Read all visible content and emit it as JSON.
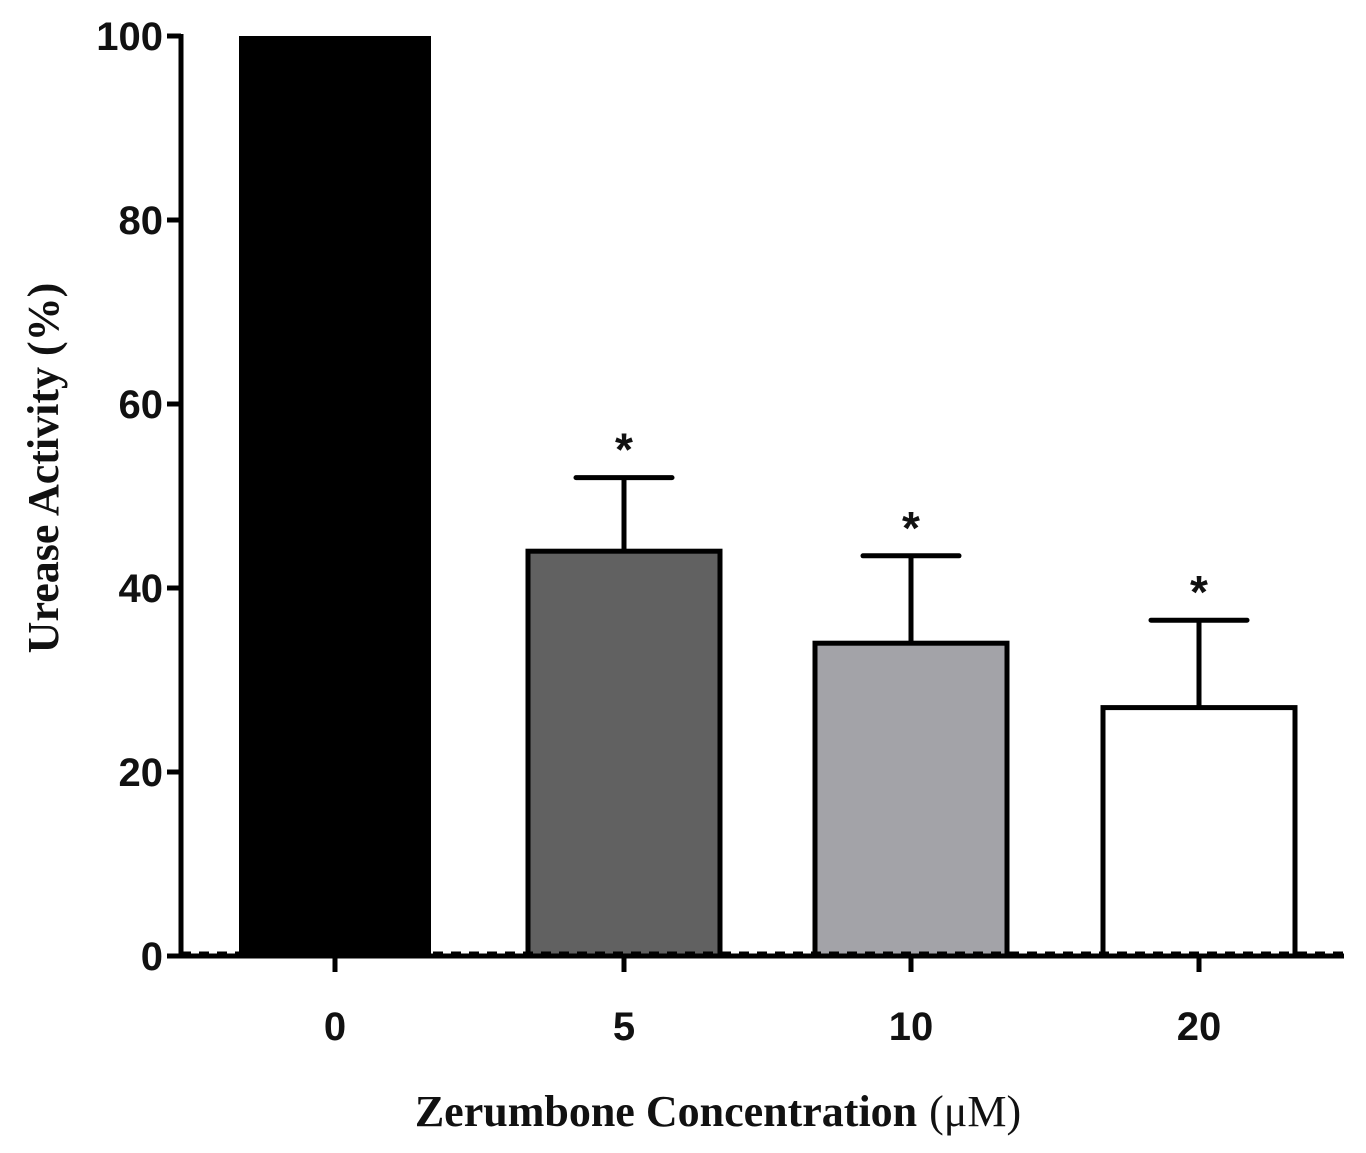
{
  "chart_data": {
    "type": "bar",
    "title": "",
    "xlabel": "Zerumbone Concentration",
    "xlabel_unit": "(μM)",
    "ylabel": "Urease Activity (%)",
    "ylim": [
      0,
      100
    ],
    "yticks": [
      0,
      20,
      40,
      60,
      80,
      100
    ],
    "categories": [
      "0",
      "5",
      "10",
      "20"
    ],
    "values": [
      100,
      44,
      34,
      27
    ],
    "errors": [
      0,
      8,
      9.5,
      9.5
    ],
    "bar_colors": [
      "#000000",
      "#616161",
      "#a3a3a8",
      "#ffffff"
    ],
    "annotations": [
      "",
      "*",
      "*",
      "*"
    ],
    "baseline_dashed": true,
    "legend": "none",
    "grid": false
  }
}
